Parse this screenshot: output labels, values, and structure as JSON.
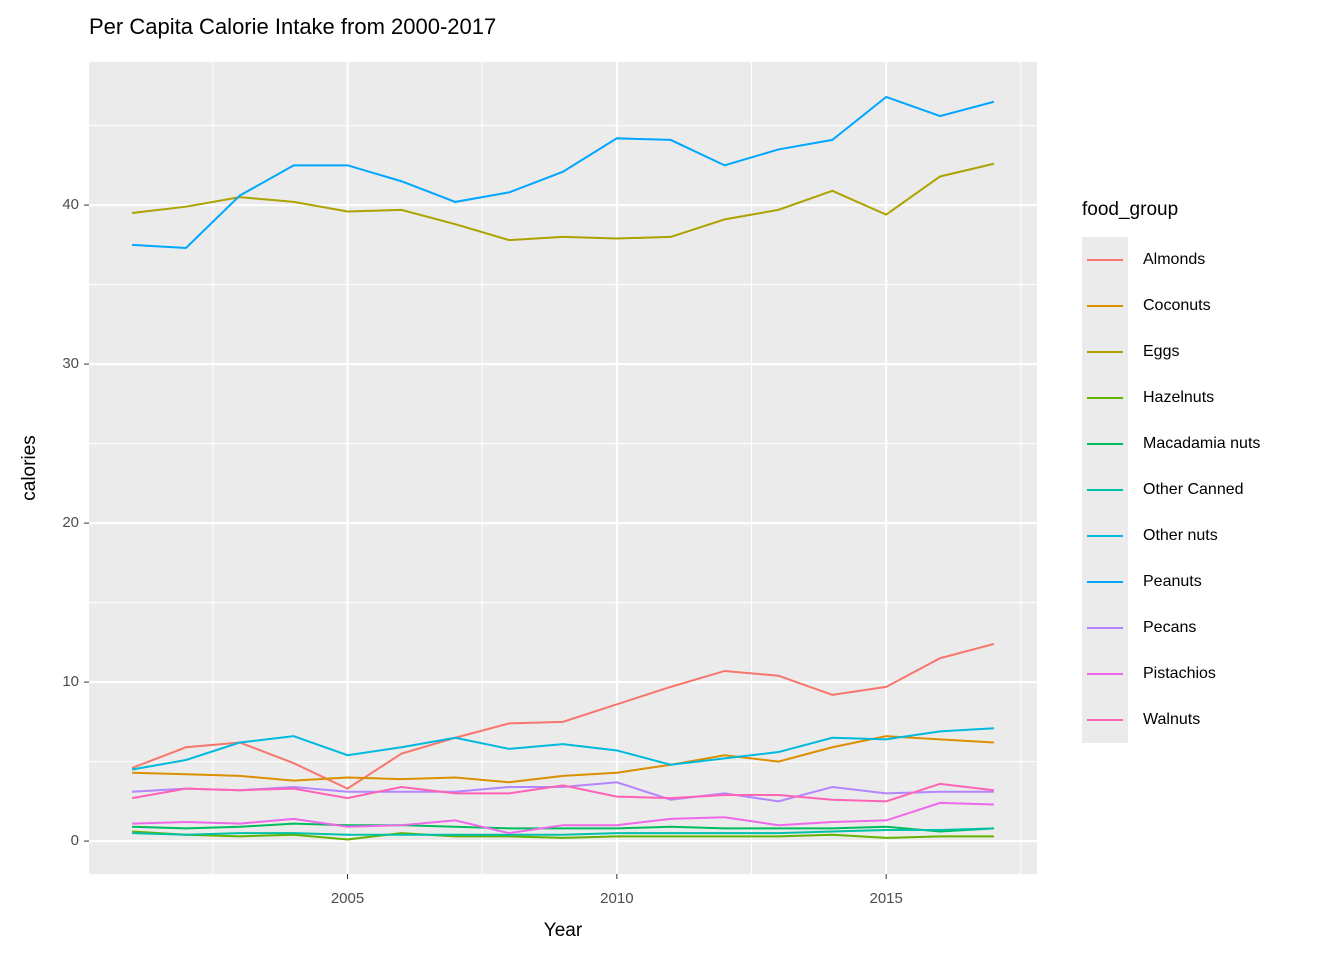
{
  "chart_data": {
    "type": "line",
    "title": "Per Capita Calorie Intake from 2000-2017",
    "x_label": "Year",
    "y_label": "calories",
    "legend_title": "food_group",
    "x": [
      2001,
      2002,
      2003,
      2004,
      2005,
      2006,
      2007,
      2008,
      2009,
      2010,
      2011,
      2012,
      2013,
      2014,
      2015,
      2016,
      2017
    ],
    "xlim": [
      2000.2,
      2017.8
    ],
    "xticks": [
      2005,
      2010,
      2015
    ],
    "ylim": [
      -2.07,
      49
    ],
    "yticks": [
      0,
      10,
      20,
      30,
      40
    ],
    "grid": true,
    "legend": "right",
    "series": [
      {
        "name": "Almonds",
        "color": "#F8766D",
        "values": [
          4.6,
          5.9,
          6.2,
          4.9,
          3.3,
          5.5,
          6.5,
          7.4,
          7.5,
          8.6,
          9.7,
          10.7,
          10.4,
          9.2,
          9.7,
          11.5,
          12.4
        ]
      },
      {
        "name": "Coconuts",
        "color": "#DB8E00",
        "values": [
          4.3,
          4.2,
          4.1,
          3.8,
          4.0,
          3.9,
          4.0,
          3.7,
          4.1,
          4.3,
          4.8,
          5.4,
          5.0,
          5.9,
          6.6,
          6.4,
          6.2
        ]
      },
      {
        "name": "Eggs",
        "color": "#AEA200",
        "values": [
          39.5,
          39.9,
          40.5,
          40.2,
          39.6,
          39.7,
          38.8,
          37.8,
          38.0,
          37.9,
          38.0,
          39.1,
          39.7,
          40.9,
          39.4,
          41.8,
          42.6
        ]
      },
      {
        "name": "Hazelnuts",
        "color": "#64B200",
        "values": [
          0.6,
          0.4,
          0.3,
          0.4,
          0.1,
          0.5,
          0.3,
          0.3,
          0.2,
          0.3,
          0.3,
          0.3,
          0.3,
          0.4,
          0.2,
          0.3,
          0.3
        ]
      },
      {
        "name": "Macadamia nuts",
        "color": "#00BD5C",
        "values": [
          0.9,
          0.8,
          0.9,
          1.1,
          1.0,
          1.0,
          0.9,
          0.8,
          0.8,
          0.8,
          0.9,
          0.8,
          0.8,
          0.8,
          0.9,
          0.6,
          0.8
        ]
      },
      {
        "name": "Other Canned",
        "color": "#00C1A7",
        "values": [
          0.5,
          0.4,
          0.5,
          0.5,
          0.4,
          0.4,
          0.4,
          0.4,
          0.4,
          0.5,
          0.5,
          0.5,
          0.5,
          0.6,
          0.7,
          0.7,
          0.8
        ]
      },
      {
        "name": "Other nuts",
        "color": "#00BADE",
        "values": [
          4.5,
          5.1,
          6.2,
          6.6,
          5.4,
          5.9,
          6.5,
          5.8,
          6.1,
          5.7,
          4.8,
          5.2,
          5.6,
          6.5,
          6.4,
          6.9,
          7.1
        ]
      },
      {
        "name": "Peanuts",
        "color": "#00A6FF",
        "values": [
          37.5,
          37.3,
          40.6,
          42.5,
          42.5,
          41.5,
          40.2,
          40.8,
          42.1,
          44.2,
          44.1,
          42.5,
          43.5,
          44.1,
          46.8,
          45.6,
          46.5
        ]
      },
      {
        "name": "Pecans",
        "color": "#B385FF",
        "values": [
          3.1,
          3.3,
          3.2,
          3.4,
          3.1,
          3.1,
          3.1,
          3.4,
          3.4,
          3.7,
          2.6,
          3.0,
          2.5,
          3.4,
          3.0,
          3.1,
          3.1
        ]
      },
      {
        "name": "Pistachios",
        "color": "#EF67EB",
        "values": [
          1.1,
          1.2,
          1.1,
          1.4,
          0.9,
          1.0,
          1.3,
          0.5,
          1.0,
          1.0,
          1.4,
          1.5,
          1.0,
          1.2,
          1.3,
          2.4,
          2.3
        ]
      },
      {
        "name": "Walnuts",
        "color": "#FF63B6",
        "values": [
          2.7,
          3.3,
          3.2,
          3.3,
          2.7,
          3.4,
          3.0,
          3.0,
          3.5,
          2.8,
          2.7,
          2.9,
          2.9,
          2.6,
          2.5,
          3.6,
          3.2
        ]
      }
    ]
  }
}
